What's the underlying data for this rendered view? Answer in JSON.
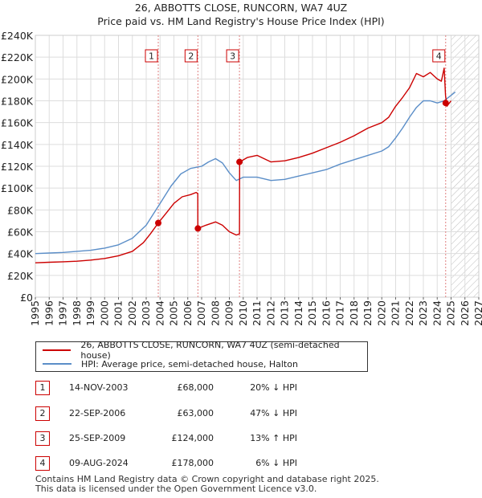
{
  "title": "26, ABBOTTS CLOSE, RUNCORN, WA7 4UZ",
  "subtitle": "Price paid vs. HM Land Registry's House Price Index (HPI)",
  "chart_data": {
    "type": "line",
    "xlim": [
      1995,
      2027
    ],
    "ylim": [
      0,
      240000
    ],
    "x_ticks": [
      1995,
      1996,
      1997,
      1998,
      1999,
      2000,
      2001,
      2002,
      2003,
      2004,
      2005,
      2006,
      2007,
      2008,
      2009,
      2010,
      2011,
      2012,
      2013,
      2014,
      2015,
      2016,
      2017,
      2018,
      2019,
      2020,
      2021,
      2022,
      2023,
      2024,
      2025,
      2026,
      2027
    ],
    "y_ticks": [
      {
        "value": 0,
        "label": "£0"
      },
      {
        "value": 20000,
        "label": "£20K"
      },
      {
        "value": 40000,
        "label": "£40K"
      },
      {
        "value": 60000,
        "label": "£60K"
      },
      {
        "value": 80000,
        "label": "£80K"
      },
      {
        "value": 100000,
        "label": "£100K"
      },
      {
        "value": 120000,
        "label": "£120K"
      },
      {
        "value": 140000,
        "label": "£140K"
      },
      {
        "value": 160000,
        "label": "£160K"
      },
      {
        "value": 180000,
        "label": "£180K"
      },
      {
        "value": 200000,
        "label": "£200K"
      },
      {
        "value": 220000,
        "label": "£220K"
      },
      {
        "value": 240000,
        "label": "£240K"
      }
    ],
    "forecast_start": 2025.0,
    "series": [
      {
        "name": "26, ABBOTTS CLOSE, RUNCORN, WA7 4UZ (semi-detached house)",
        "color": "#cc0000",
        "x": [
          1995.0,
          1996.0,
          1997.0,
          1998.0,
          1999.0,
          2000.0,
          2001.0,
          2002.0,
          2002.8,
          2003.3,
          2003.87,
          2004.5,
          2005.0,
          2005.6,
          2006.2,
          2006.6,
          2006.72,
          2006.73,
          2007.3,
          2008.0,
          2008.5,
          2009.0,
          2009.5,
          2009.73,
          2009.74,
          2010.3,
          2011.0,
          2012.0,
          2013.0,
          2014.0,
          2015.0,
          2016.0,
          2017.0,
          2018.0,
          2019.0,
          2020.0,
          2020.5,
          2021.0,
          2021.5,
          2022.0,
          2022.5,
          2023.0,
          2023.5,
          2024.0,
          2024.3,
          2024.5,
          2024.6,
          2024.7,
          2025.0
        ],
        "y": [
          31500,
          32000,
          32500,
          33000,
          34000,
          35500,
          38000,
          42000,
          50000,
          58000,
          68000,
          78000,
          86000,
          92000,
          94000,
          96000,
          95000,
          63000,
          66000,
          69000,
          66000,
          60000,
          57000,
          58000,
          124000,
          128000,
          130000,
          124000,
          125000,
          128000,
          132000,
          137000,
          142000,
          148000,
          155000,
          160000,
          165000,
          175000,
          183000,
          192000,
          205000,
          202000,
          206000,
          200000,
          198000,
          210000,
          185000,
          175000,
          180000
        ]
      },
      {
        "name": "HPI: Average price, semi-detached house, Halton",
        "color": "#5b8ec8",
        "x": [
          1995.0,
          1996.0,
          1997.0,
          1998.0,
          1999.0,
          2000.0,
          2001.0,
          2002.0,
          2003.0,
          2004.0,
          2004.8,
          2005.5,
          2006.2,
          2007.0,
          2007.5,
          2008.0,
          2008.5,
          2009.0,
          2009.5,
          2010.0,
          2011.0,
          2012.0,
          2013.0,
          2014.0,
          2015.0,
          2016.0,
          2017.0,
          2018.0,
          2019.0,
          2020.0,
          2020.5,
          2021.0,
          2021.5,
          2022.0,
          2022.5,
          2023.0,
          2023.5,
          2024.0,
          2024.5,
          2025.0,
          2025.3
        ],
        "y": [
          40000,
          40500,
          41000,
          42000,
          43000,
          45000,
          48000,
          54000,
          66000,
          86000,
          102000,
          113000,
          118000,
          120000,
          124000,
          127000,
          123000,
          114000,
          107000,
          110000,
          110000,
          107000,
          108000,
          111000,
          114000,
          117000,
          122000,
          126000,
          130000,
          134000,
          138000,
          146000,
          155000,
          165000,
          174000,
          180000,
          180000,
          178000,
          180000,
          185000,
          188000
        ]
      }
    ],
    "markers": [
      {
        "label": "1",
        "x": 2003.87,
        "y": 68000
      },
      {
        "label": "2",
        "x": 2006.73,
        "y": 63000
      },
      {
        "label": "3",
        "x": 2009.73,
        "y": 124000
      },
      {
        "label": "4",
        "x": 2024.61,
        "y": 178000
      }
    ]
  },
  "legend": {
    "property": "26, ABBOTTS CLOSE, RUNCORN, WA7 4UZ (semi-detached house)",
    "hpi": "HPI: Average price, semi-detached house, Halton"
  },
  "transactions": [
    {
      "num": "1",
      "date": "14-NOV-2003",
      "price": "£68,000",
      "delta": "20% ↓ HPI"
    },
    {
      "num": "2",
      "date": "22-SEP-2006",
      "price": "£63,000",
      "delta": "47% ↓ HPI"
    },
    {
      "num": "3",
      "date": "25-SEP-2009",
      "price": "£124,000",
      "delta": "13% ↑ HPI"
    },
    {
      "num": "4",
      "date": "09-AUG-2024",
      "price": "£178,000",
      "delta": "6% ↓ HPI"
    }
  ],
  "footer": {
    "line1": "Contains HM Land Registry data © Crown copyright and database right 2025.",
    "line2": "This data is licensed under the Open Government Licence v3.0."
  }
}
